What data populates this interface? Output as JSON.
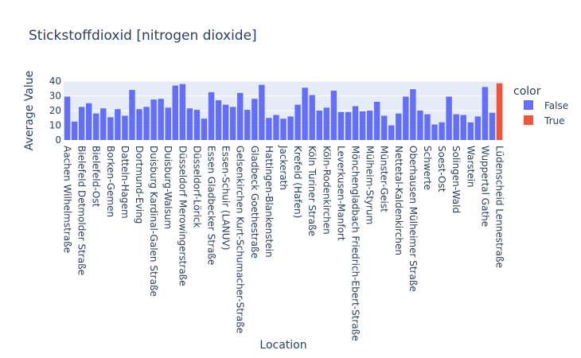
{
  "chart_data": {
    "type": "bar",
    "title": "Stickstoffdioxid [nitrogen dioxide]",
    "xlabel": "Location",
    "ylabel": "Average Value",
    "ylim": [
      0,
      40
    ],
    "yticks": [
      0,
      10,
      20,
      30,
      40
    ],
    "grid": true,
    "legend": {
      "title": "color",
      "placement": "right",
      "entries": [
        {
          "name": "False",
          "color": "#636efa"
        },
        {
          "name": "True",
          "color": "#ef553b"
        }
      ]
    },
    "categories": [
      "Aachen Wilhelmstraße",
      "",
      "Bielefeld Detmolder Straße",
      "",
      "Bielefeld-Ost",
      "",
      "Borken-Gemen",
      "",
      "Datteln-Hagem",
      "",
      "Dortmund-Eving",
      "",
      "Duisburg Kardinal-Galen Straße",
      "",
      "Duisburg-Walsum",
      "",
      "Düsseldorf Merowingerstraße",
      "",
      "Düsseldorf-Lörick",
      "",
      "Essen Gladbecker Straße",
      "",
      "Essen-Schuir (LANUV)",
      "",
      "Gelsenkirchen Kurt-Schumacher-Straße",
      "",
      "Gladbeck Goethestraße",
      "",
      "Hattingen-Blankenstein",
      "",
      "Jackerath",
      "",
      "Krefeld (Hafen)",
      "",
      "Köln Turiner Straße",
      "",
      "Köln-Rodenkirchen",
      "",
      "Leverkusen-Manfort",
      "",
      "Mönchengladbach Friedrich-Ebert-Straße",
      "",
      "Mülheim-Styrum",
      "",
      "Münster-Geist",
      "",
      "Nettetal-Kaldenkirchen",
      "",
      "Oberhausen Mülheimer Straße",
      "",
      "Schwerte",
      "",
      "Soest-Ost",
      "",
      "Solingen-Wald",
      "",
      "Warstein",
      "",
      "Wuppertal Gathe",
      "",
      "Lüdenscheid Lennestraße"
    ],
    "values": [
      29.5,
      12.5,
      22.5,
      25,
      18,
      21.5,
      15.5,
      21,
      16.5,
      34,
      21,
      22.5,
      27.5,
      28,
      22,
      37,
      38,
      21.5,
      20.5,
      14.5,
      32.5,
      27,
      24,
      22.5,
      32,
      20.5,
      28,
      37.5,
      15,
      17,
      14.5,
      16,
      24,
      35.5,
      30.5,
      20,
      22,
      33.5,
      19,
      19,
      23,
      19.5,
      20,
      26,
      16.5,
      10,
      18,
      29.5,
      34.5,
      20,
      17.5,
      10.5,
      12,
      29.5,
      17.5,
      17,
      12,
      16,
      36,
      18.5,
      38.5
    ],
    "color_flags": [
      false,
      false,
      false,
      false,
      false,
      false,
      false,
      false,
      false,
      false,
      false,
      false,
      false,
      false,
      false,
      false,
      false,
      false,
      false,
      false,
      false,
      false,
      false,
      false,
      false,
      false,
      false,
      false,
      false,
      false,
      false,
      false,
      false,
      false,
      false,
      false,
      false,
      false,
      false,
      false,
      false,
      false,
      false,
      false,
      false,
      false,
      false,
      false,
      false,
      false,
      false,
      false,
      false,
      false,
      false,
      false,
      false,
      false,
      false,
      false,
      true
    ],
    "colors": {
      "false": "#636efa",
      "true": "#ef553b",
      "plot_bg": "#e5ecf6",
      "grid": "#ffffff",
      "text": "#2a3f5f"
    }
  }
}
